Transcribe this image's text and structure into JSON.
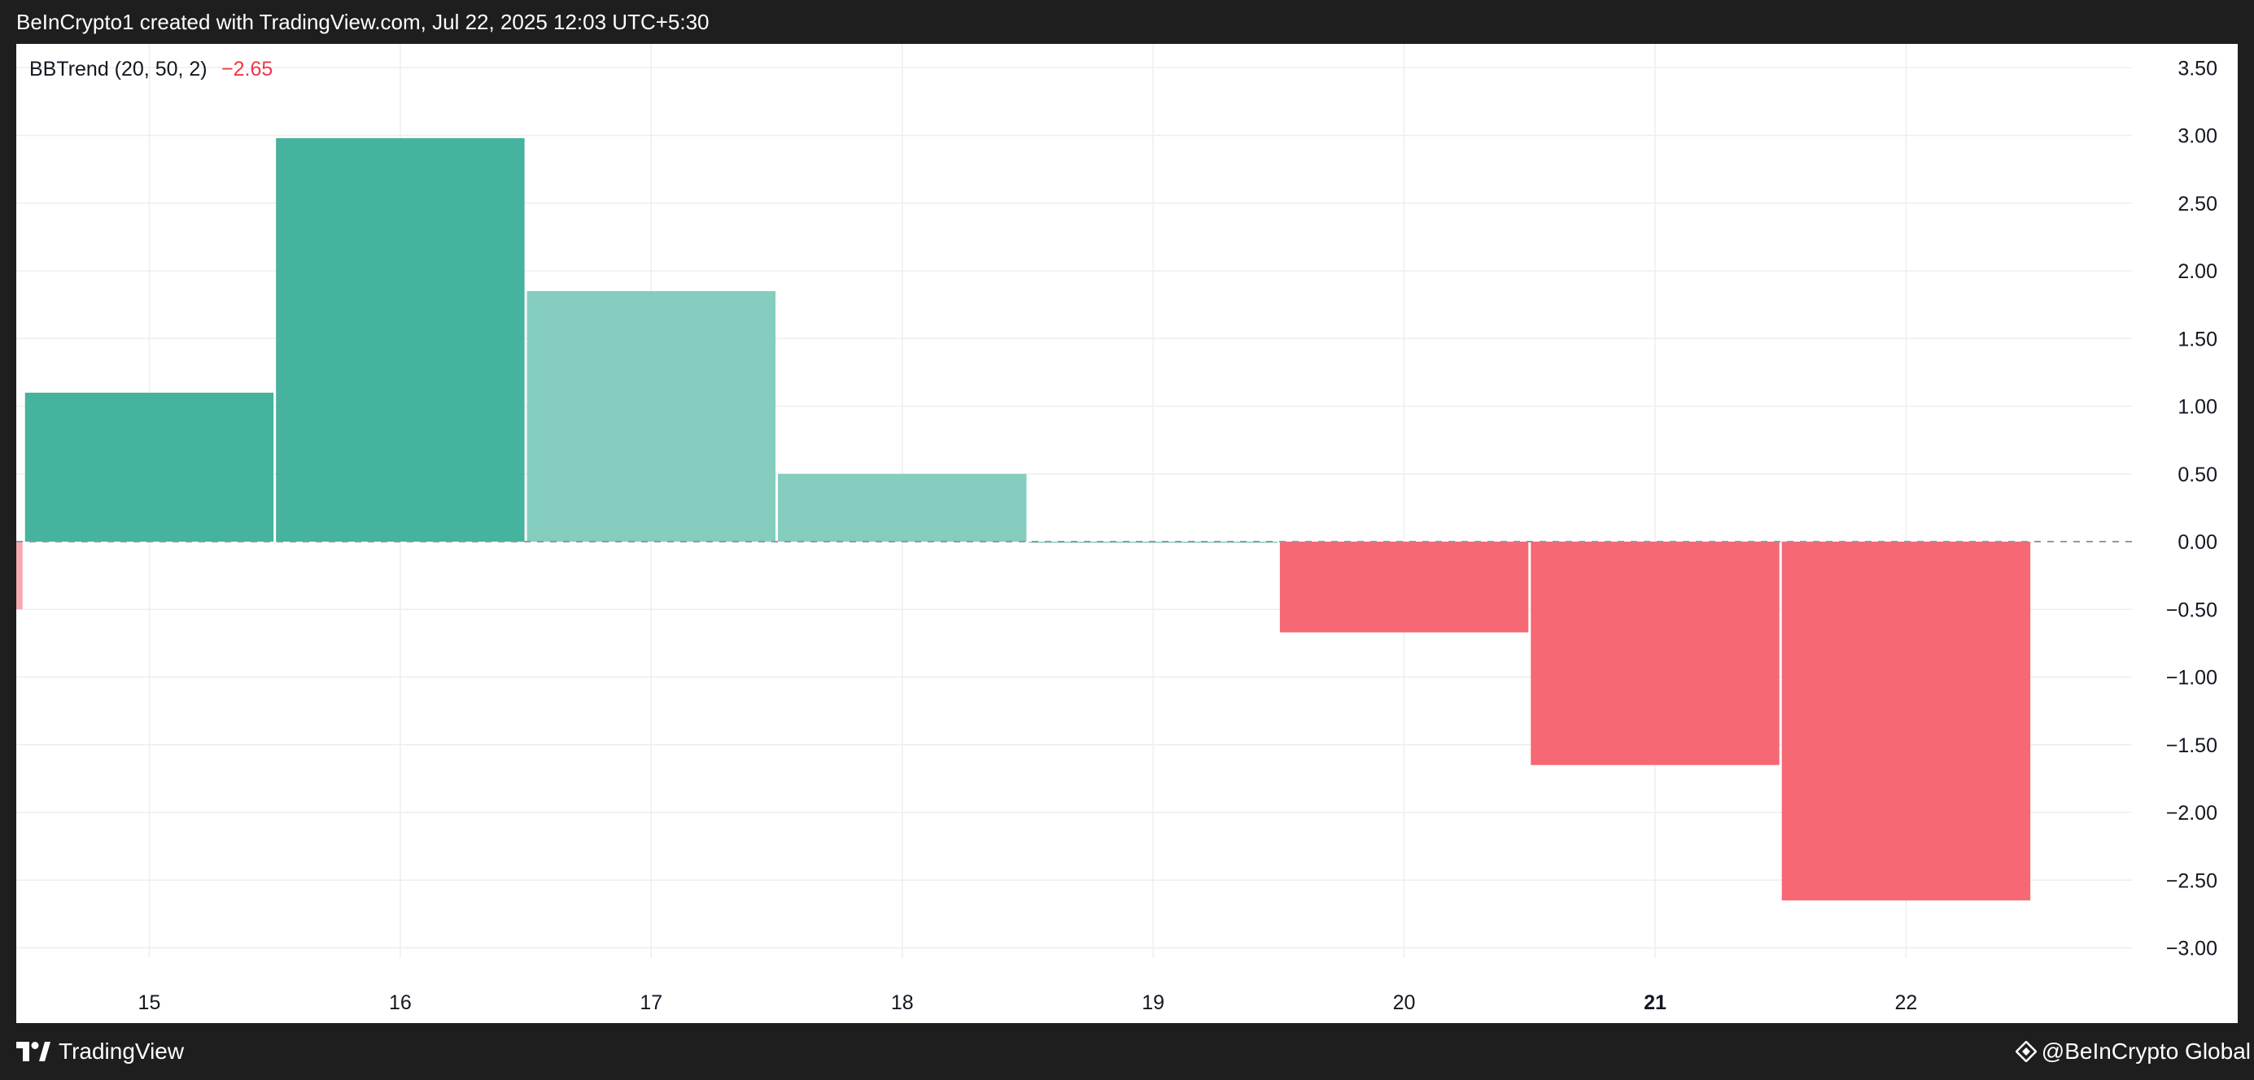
{
  "header": {
    "attribution": "BeInCrypto1 created with TradingView.com, Jul 22, 2025 12:03 UTC+5:30"
  },
  "indicator": {
    "name": "BBTrend (20, 50, 2)",
    "value": "−2.65"
  },
  "footer": {
    "platform": "TradingView",
    "brand": "@BeInCrypto Global"
  },
  "colors": {
    "up_strong": "#45b39d",
    "up_weak": "#84cdbf",
    "down_strong": "#f66874",
    "down_weak": "#f7a9b0",
    "grid": "#eeeeee",
    "axis_text": "#131722",
    "value_red": "#f23645"
  },
  "icons": {
    "platform_logo": "tradingview-logo-icon",
    "brand_logo": "beincrypto-logo-icon"
  },
  "chart_data": {
    "type": "bar",
    "title": "BBTrend (20, 50, 2)",
    "x": [
      14,
      15,
      16,
      17,
      18,
      19,
      20,
      21,
      22
    ],
    "categories": [
      "14",
      "15",
      "16",
      "17",
      "18",
      "19",
      "20",
      "21",
      "22"
    ],
    "values": [
      -0.5,
      1.1,
      2.98,
      1.85,
      0.5,
      0.0,
      -0.67,
      -1.65,
      -2.65
    ],
    "bar_colors": [
      "down_weak",
      "up_strong",
      "up_strong",
      "up_weak",
      "up_weak",
      "up_weak",
      "down_strong",
      "down_strong",
      "down_strong"
    ],
    "x_tick_labels": [
      "15",
      "16",
      "17",
      "18",
      "19",
      "20",
      "21",
      "22"
    ],
    "x_tick_values": [
      15,
      16,
      17,
      18,
      19,
      20,
      21,
      22
    ],
    "x_tick_bold": [
      "21"
    ],
    "y_tick_values": [
      3.5,
      3.0,
      2.5,
      2.0,
      1.5,
      1.0,
      0.5,
      0.0,
      -0.5,
      -1.0,
      -1.5,
      -2.0,
      -2.5,
      -3.0
    ],
    "y_tick_labels": [
      "3.50",
      "3.00",
      "2.50",
      "2.00",
      "1.50",
      "1.00",
      "0.50",
      "0.00",
      "−0.50",
      "−1.00",
      "−1.50",
      "−2.00",
      "−2.50",
      "−3.00"
    ],
    "ylim": [
      -3.15,
      3.5
    ],
    "xlim": [
      14.47,
      22.9
    ],
    "zero_line": "dashed",
    "grid": true,
    "legend": "top-left",
    "xlabel": "",
    "ylabel": ""
  }
}
